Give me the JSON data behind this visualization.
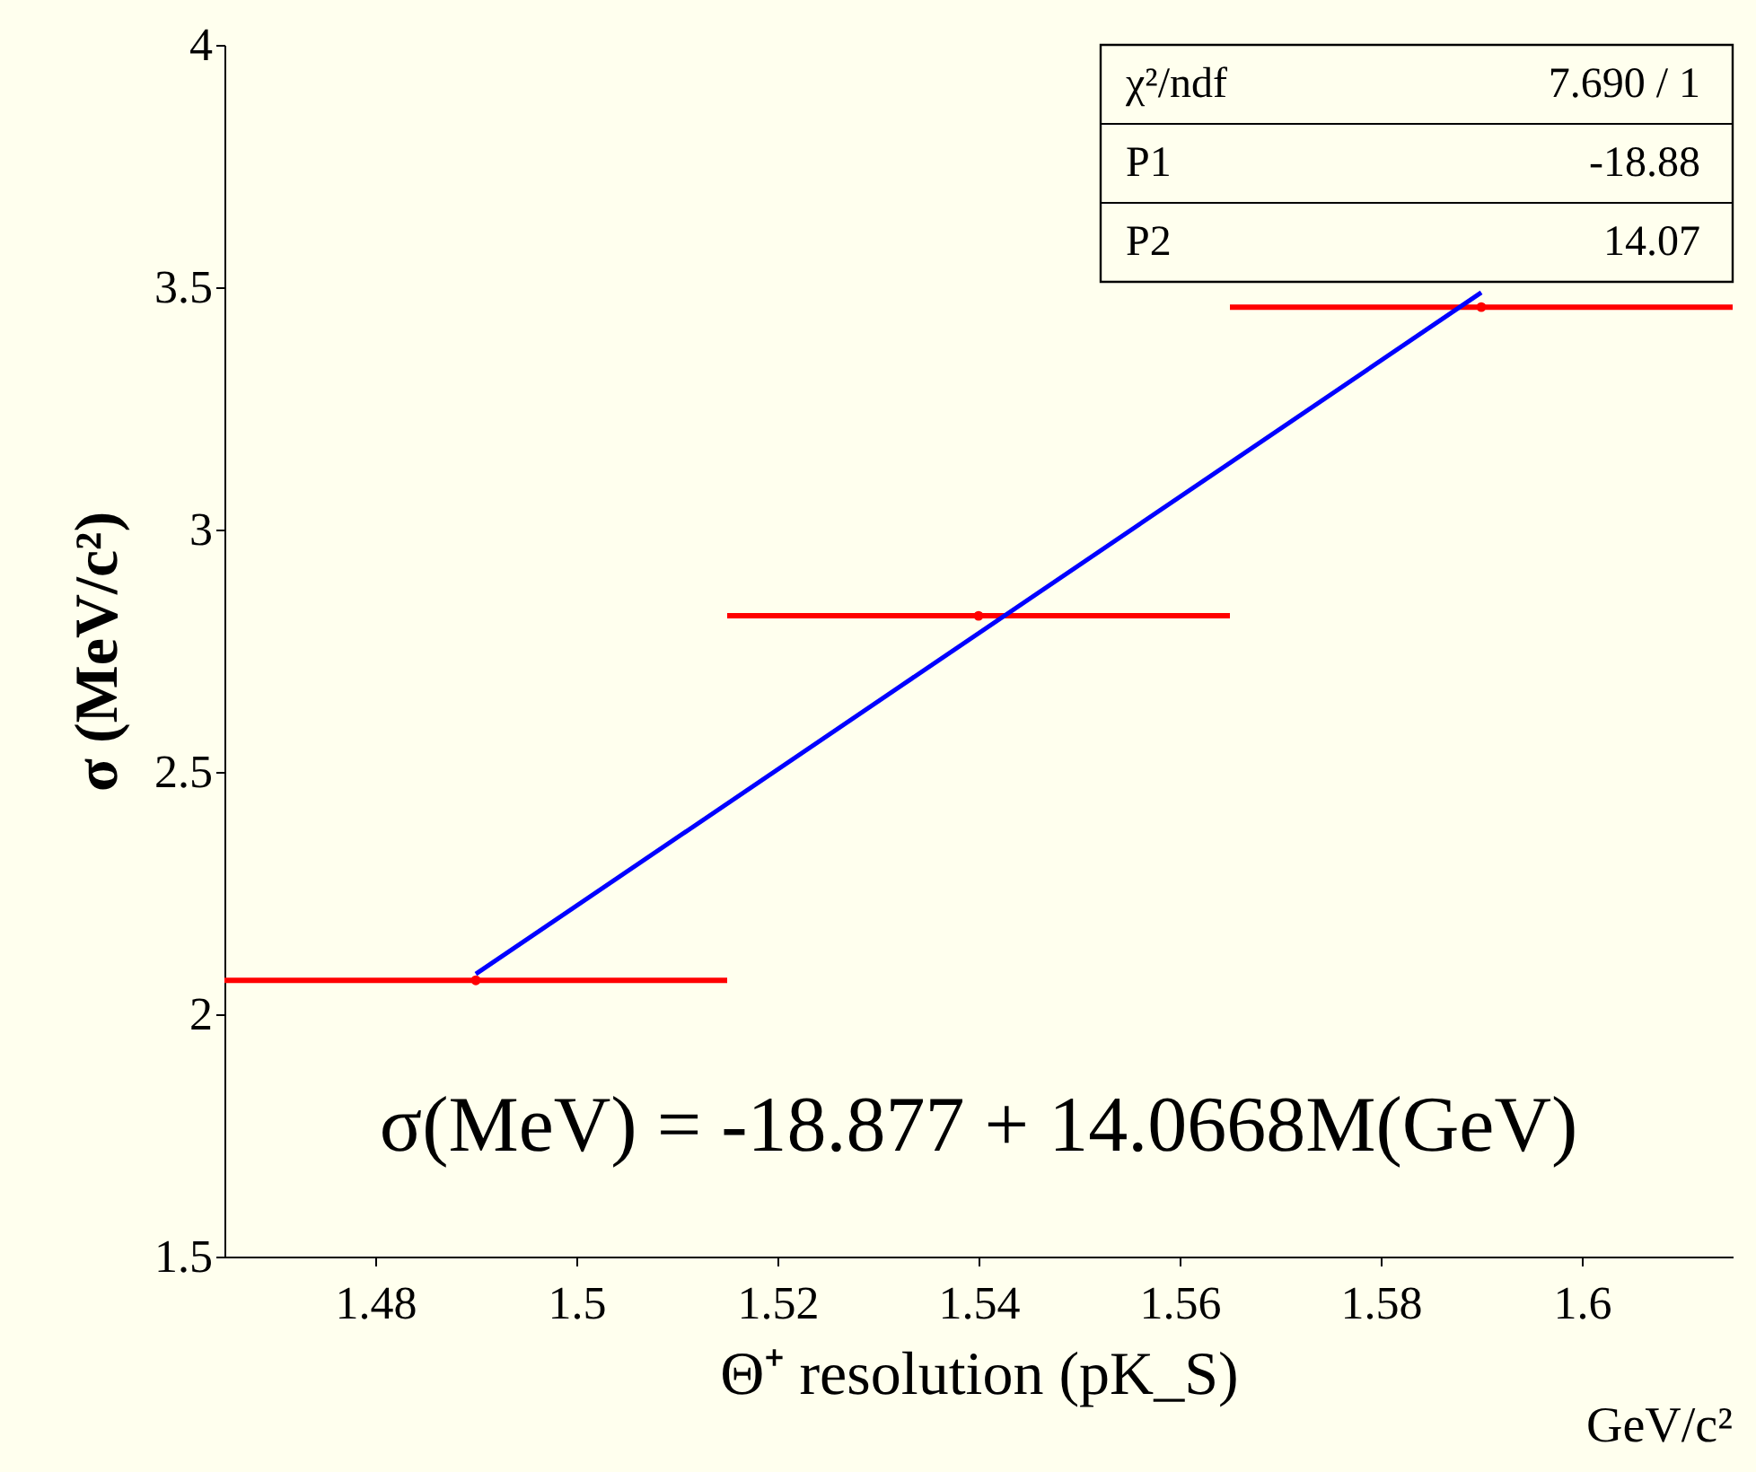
{
  "chart_data": {
    "type": "scatter",
    "xlabel": "Θ⁺ resolution  (pK_S)",
    "ylabel": "σ  (MeV/c²)",
    "xlim": [
      1.465,
      1.615
    ],
    "xticks": [
      1.48,
      1.5,
      1.52,
      1.54,
      1.56,
      1.58,
      1.6
    ],
    "ylim": [
      1.5,
      4
    ],
    "yticks": [
      1.5,
      2,
      2.5,
      3,
      3.5,
      4
    ],
    "grid": false,
    "marker": "none",
    "series": [
      {
        "color": "#ff0000",
        "marker": "circle",
        "x": [
          1.49,
          1.54,
          1.59
        ],
        "values": [
          2.07,
          2.822,
          3.459
        ],
        "xerrors": [
          0.025,
          0.025,
          0.025
        ]
      },
      {
        "type": "line",
        "color": "#0000ff",
        "x": [
          1.49,
          1.59
        ],
        "values": [
          2.083,
          3.489
        ]
      }
    ],
    "annotations": [
      "χ²/ndf   7.690  /  1",
      "P1   -18.88",
      "P2   14.07",
      "σ(MeV) = -18.877 + 14.0668M(GeV)",
      "GeV/c²"
    ]
  }
}
